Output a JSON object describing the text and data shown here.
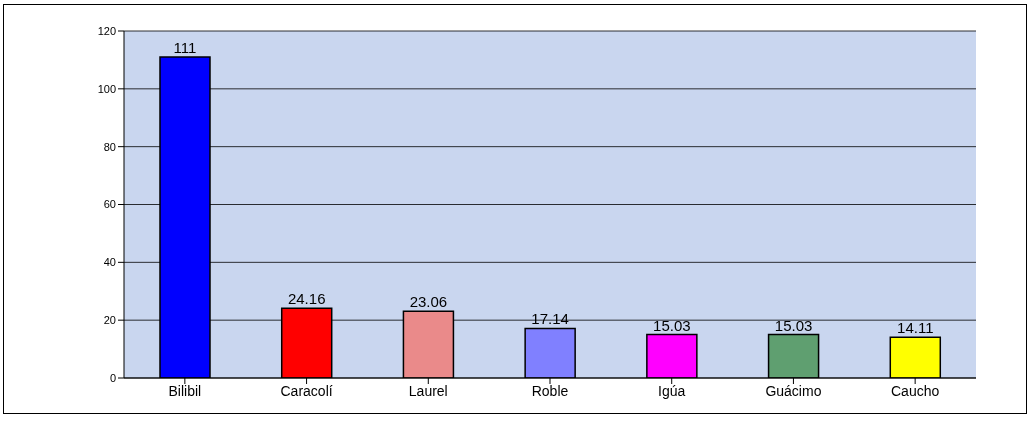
{
  "chart_data": {
    "type": "bar",
    "categories": [
      "Bilibil",
      "Caracolí",
      "Laurel",
      "Roble",
      "Igúa",
      "Guácimo",
      "Caucho"
    ],
    "values": [
      111,
      24.16,
      23.06,
      17.14,
      15.03,
      15.03,
      14.11
    ],
    "colors": [
      "#0000ff",
      "#ff0000",
      "#ea8a8a",
      "#8080ff",
      "#ff00ff",
      "#5f9f70",
      "#ffff00"
    ],
    "ylim": [
      0,
      120
    ],
    "yticks": [
      0,
      20,
      40,
      60,
      80,
      100,
      120
    ],
    "grid": "y",
    "data_labels": true
  }
}
